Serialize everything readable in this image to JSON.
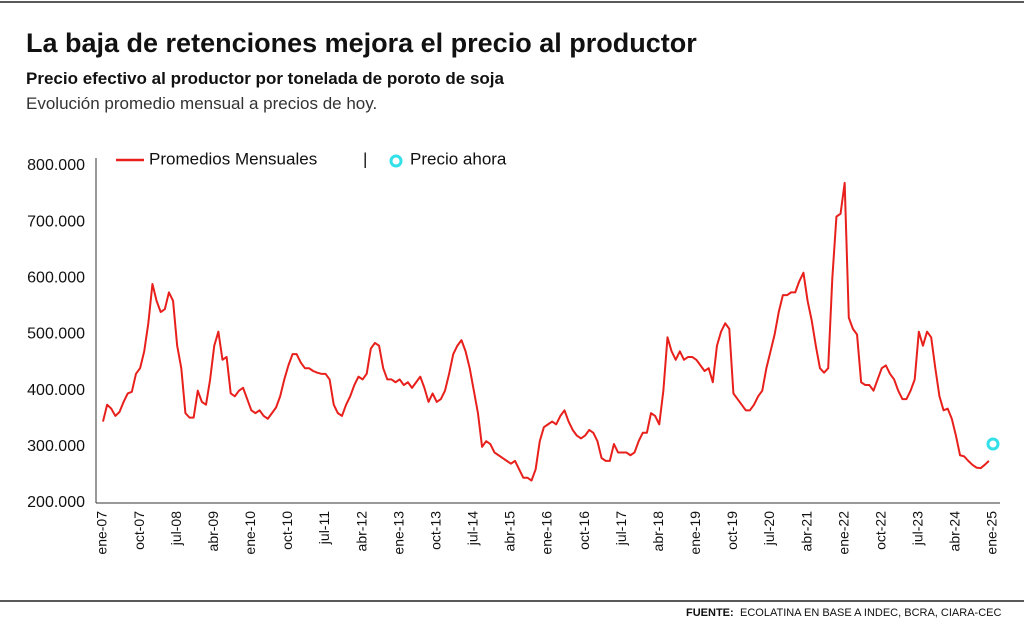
{
  "chart_data": {
    "type": "line",
    "title": "La baja de retenciones mejora el precio al productor",
    "subtitle": "Precio efectivo al productor por tonelada de poroto de soja",
    "description": "Evolución promedio mensual a precios de hoy.",
    "legend_separator": "|",
    "source_label": "FUENTE:",
    "source": "ECOLATINA EN BASE A INDEC, BCRA, CIARA-CEC",
    "categories": [
      "ene-07",
      null,
      null,
      null,
      null,
      null,
      null,
      null,
      null,
      "oct-07",
      null,
      null,
      null,
      null,
      null,
      null,
      null,
      null,
      "jul-08",
      null,
      null,
      null,
      null,
      null,
      null,
      null,
      null,
      "abr-09",
      null,
      null,
      null,
      null,
      null,
      null,
      null,
      null,
      "ene-10",
      null,
      null,
      null,
      null,
      null,
      null,
      null,
      null,
      "oct-10",
      null,
      null,
      null,
      null,
      null,
      null,
      null,
      null,
      "jul-11",
      null,
      null,
      null,
      null,
      null,
      null,
      null,
      null,
      "abr-12",
      null,
      null,
      null,
      null,
      null,
      null,
      null,
      null,
      "ene-13",
      null,
      null,
      null,
      null,
      null,
      null,
      null,
      null,
      "oct-13",
      null,
      null,
      null,
      null,
      null,
      null,
      null,
      null,
      "jul-14",
      null,
      null,
      null,
      null,
      null,
      null,
      null,
      null,
      "abr-15",
      null,
      null,
      null,
      null,
      null,
      null,
      null,
      null,
      "ene-16",
      null,
      null,
      null,
      null,
      null,
      null,
      null,
      null,
      "oct-16",
      null,
      null,
      null,
      null,
      null,
      null,
      null,
      null,
      "jul-17",
      null,
      null,
      null,
      null,
      null,
      null,
      null,
      null,
      "abr-18",
      null,
      null,
      null,
      null,
      null,
      null,
      null,
      null,
      "ene-19",
      null,
      null,
      null,
      null,
      null,
      null,
      null,
      null,
      "oct-19",
      null,
      null,
      null,
      null,
      null,
      null,
      null,
      null,
      "jul-20",
      null,
      null,
      null,
      null,
      null,
      null,
      null,
      null,
      "abr-21",
      null,
      null,
      null,
      null,
      null,
      null,
      null,
      null,
      "ene-22",
      null,
      null,
      null,
      null,
      null,
      null,
      null,
      null,
      "oct-22",
      null,
      null,
      null,
      null,
      null,
      null,
      null,
      null,
      "jul-23",
      null,
      null,
      null,
      null,
      null,
      null,
      null,
      null,
      "abr-24",
      null,
      null,
      null,
      null,
      null,
      null,
      null,
      null,
      "ene-25"
    ],
    "series": [
      {
        "name": "Promedios Mensuales",
        "color": "#e8201c",
        "values": [
          345000,
          375000,
          368000,
          355000,
          362000,
          380000,
          395000,
          398000,
          430000,
          440000,
          470000,
          520000,
          590000,
          560000,
          540000,
          545000,
          575000,
          560000,
          480000,
          440000,
          360000,
          352000,
          352000,
          400000,
          380000,
          375000,
          420000,
          480000,
          505000,
          455000,
          460000,
          395000,
          390000,
          400000,
          405000,
          385000,
          365000,
          360000,
          365000,
          355000,
          350000,
          360000,
          370000,
          390000,
          420000,
          445000,
          465000,
          465000,
          450000,
          440000,
          440000,
          435000,
          432000,
          430000,
          430000,
          420000,
          375000,
          360000,
          355000,
          375000,
          390000,
          410000,
          425000,
          420000,
          430000,
          475000,
          485000,
          480000,
          440000,
          420000,
          420000,
          415000,
          420000,
          410000,
          415000,
          405000,
          415000,
          425000,
          405000,
          380000,
          395000,
          380000,
          385000,
          400000,
          430000,
          465000,
          480000,
          490000,
          470000,
          440000,
          400000,
          360000,
          300000,
          310000,
          305000,
          290000,
          285000,
          280000,
          275000,
          270000,
          275000,
          260000,
          245000,
          245000,
          240000,
          260000,
          310000,
          335000,
          340000,
          345000,
          340000,
          355000,
          365000,
          345000,
          330000,
          320000,
          315000,
          320000,
          330000,
          325000,
          310000,
          280000,
          275000,
          275000,
          305000,
          290000,
          290000,
          290000,
          285000,
          290000,
          310000,
          325000,
          325000,
          360000,
          355000,
          340000,
          400000,
          495000,
          470000,
          455000,
          470000,
          455000,
          460000,
          460000,
          455000,
          445000,
          435000,
          440000,
          415000,
          480000,
          505000,
          520000,
          510000,
          395000,
          385000,
          375000,
          365000,
          365000,
          375000,
          390000,
          400000,
          440000,
          470000,
          500000,
          540000,
          570000,
          570000,
          575000,
          575000,
          595000,
          610000,
          560000,
          525000,
          480000,
          440000,
          432000,
          440000,
          600000,
          710000,
          715000,
          770000,
          530000,
          510000,
          500000,
          415000,
          410000,
          410000,
          400000,
          420000,
          440000,
          445000,
          430000,
          420000,
          400000,
          385000,
          385000,
          400000,
          420000,
          505000,
          480000,
          505000,
          495000,
          440000,
          390000,
          365000,
          368000,
          350000,
          320000,
          285000,
          283000,
          275000,
          268000,
          263000,
          262000,
          268000,
          275000,
          null
        ]
      },
      {
        "name": "Precio ahora",
        "color": "#33e0e8",
        "x": "ene-25",
        "value": 305000
      }
    ],
    "ylim": [
      200000,
      800000
    ],
    "yticks": [
      {
        "value": 200000,
        "label": "200.000"
      },
      {
        "value": 300000,
        "label": "300.000"
      },
      {
        "value": 400000,
        "label": "400.000"
      },
      {
        "value": 500000,
        "label": "500.000"
      },
      {
        "value": 600000,
        "label": "600.000"
      },
      {
        "value": 700000,
        "label": "700.000"
      },
      {
        "value": 800000,
        "label": "800.000"
      }
    ],
    "grid": false
  }
}
